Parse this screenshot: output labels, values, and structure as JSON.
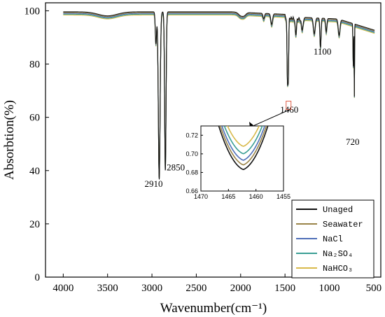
{
  "chart_data": {
    "type": "line",
    "xlabel": "Wavenumber(cm⁻¹)",
    "ylabel": "Absorbtion(%)",
    "xlim": [
      4200,
      420
    ],
    "ylim": [
      0,
      103
    ],
    "x_ticks": [
      4000,
      3500,
      3000,
      2500,
      2000,
      1500,
      1000,
      500
    ],
    "y_ticks": [
      0,
      20,
      40,
      60,
      80,
      100
    ],
    "legend_position": "bottom-right",
    "series": [
      {
        "name": "Unaged",
        "color": "#111111",
        "offset": 0,
        "depth": 1.0
      },
      {
        "name": "Seawater",
        "color": "#9a8448",
        "offset": -0.3,
        "depth": 0.99
      },
      {
        "name": "NaCl",
        "color": "#4f6fb8",
        "offset": -0.6,
        "depth": 0.985
      },
      {
        "name": "Na₂SO₄",
        "color": "#3a9e94",
        "offset": -0.9,
        "depth": 0.98
      },
      {
        "name": "NaHCO₃",
        "color": "#d8b94a",
        "offset": -1.2,
        "depth": 0.975
      }
    ],
    "annotations": [
      {
        "text": "2910",
        "x": 2910,
        "y": 36
      },
      {
        "text": "2850",
        "x": 2850,
        "y": 39
      },
      {
        "text": "1460",
        "x": 1460,
        "y": 66
      },
      {
        "text": "1100",
        "x": 1100,
        "y": 82
      },
      {
        "text": "720",
        "x": 720,
        "y": 57
      }
    ],
    "inset": {
      "x_ticks": [
        1470,
        1465,
        1460,
        1455
      ],
      "y_ticks": [
        0.66,
        0.68,
        0.7,
        0.72
      ],
      "xlim": [
        1470,
        1455
      ],
      "ylim": [
        0.66,
        0.73
      ],
      "minima": [
        0.683,
        0.688,
        0.693,
        0.7,
        0.708
      ]
    }
  }
}
